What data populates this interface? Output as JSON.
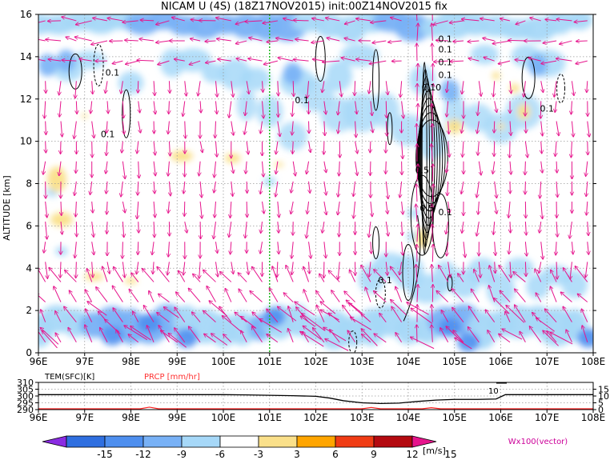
{
  "title": "NICAM U (4S) (18Z17NOV2015) init:00Z14NOV2015 fix",
  "chart_data": [
    {
      "type": "heatmap",
      "title": "NICAM U (4S) (18Z17NOV2015) init:00Z14NOV2015 fix",
      "ylabel": "ALTITUDE [km]",
      "xlabel": "",
      "x_ticks": [
        "96E",
        "97E",
        "98E",
        "99E",
        "100E",
        "101E",
        "102E",
        "103E",
        "104E",
        "105E",
        "106E",
        "107E",
        "108E"
      ],
      "y_ticks": [
        "0",
        "2",
        "4",
        "6",
        "8",
        "10",
        "12",
        "14",
        "16"
      ],
      "xlim": [
        96,
        108
      ],
      "ylim": [
        0,
        16
      ],
      "grid": true,
      "marker_lon": 101,
      "contour_labels": [
        "0.1",
        "0.1",
        "0.1",
        "0.1",
        "0.1",
        "0.1",
        "0.1",
        "0.10",
        "0.5",
        "0.5",
        "0.1",
        "0.1",
        "0.1"
      ],
      "colorbar": {
        "ticks": [
          "-15",
          "-12",
          "-9",
          "-6",
          "-3",
          "3",
          "6",
          "9",
          "12",
          "15"
        ],
        "unit": "[m/s]",
        "colors": [
          "#8a2be2",
          "#2f6fe0",
          "#4e8fef",
          "#78b1f6",
          "#a6d8f8",
          "#ffffff",
          "#fae08a",
          "#ffa500",
          "#f03c14",
          "#b40a10",
          "#e6148c"
        ]
      },
      "vector_label": "Wx100(vector)"
    },
    {
      "type": "line",
      "ylabel_left": "TEM(SFC)[K]",
      "ylabel_right": "PRCP [mm/hr]",
      "y_left_ticks": [
        "310",
        "305",
        "300",
        "295",
        "290"
      ],
      "y_right_ticks": [
        "15",
        "10",
        "5",
        "0"
      ],
      "x_ticks": [
        "96E",
        "97E",
        "98E",
        "99E",
        "100E",
        "101E",
        "102E",
        "103E",
        "104E",
        "105E",
        "106E",
        "107E",
        "108E"
      ],
      "ylim_left": [
        290,
        310
      ],
      "ylim_right": [
        0,
        20
      ],
      "annotation": "10",
      "series": [
        {
          "name": "TEM(SFC)[K]",
          "x": [
            96,
            97,
            98,
            99,
            100,
            100.5,
            101,
            101.5,
            102,
            102.3,
            102.6,
            103,
            103.4,
            103.8,
            104.2,
            104.6,
            105,
            105.5,
            105.9,
            106.1,
            106.5,
            107,
            108
          ],
          "values": [
            301,
            301,
            301,
            301,
            301,
            300.8,
            300.5,
            300.2,
            299.8,
            298.5,
            296.5,
            295,
            294.5,
            294.8,
            296,
            297,
            297.5,
            297.5,
            297.8,
            301,
            301,
            301,
            301
          ]
        },
        {
          "name": "PRCP [mm/hr]",
          "x": [
            96,
            98.2,
            98.4,
            98.6,
            103,
            103.2,
            103.4,
            104.3,
            104.5,
            104.7,
            108
          ],
          "values": [
            0,
            0,
            1.2,
            0,
            0,
            1,
            0,
            0,
            0.8,
            0,
            0
          ]
        }
      ]
    }
  ]
}
